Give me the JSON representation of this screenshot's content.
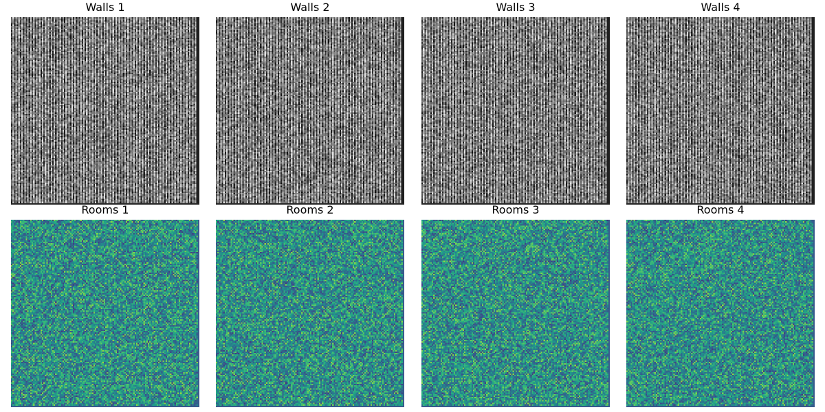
{
  "figure": {
    "rows": [
      {
        "name": "walls",
        "colormap": "gray",
        "panels": [
          {
            "title": "Walls 1"
          },
          {
            "title": "Walls 2"
          },
          {
            "title": "Walls 3"
          },
          {
            "title": "Walls 4"
          }
        ]
      },
      {
        "name": "rooms",
        "colormap": "viridis",
        "panels": [
          {
            "title": "Rooms 1"
          },
          {
            "title": "Rooms 2"
          },
          {
            "title": "Rooms 3"
          },
          {
            "title": "Rooms 4"
          }
        ]
      }
    ]
  }
}
